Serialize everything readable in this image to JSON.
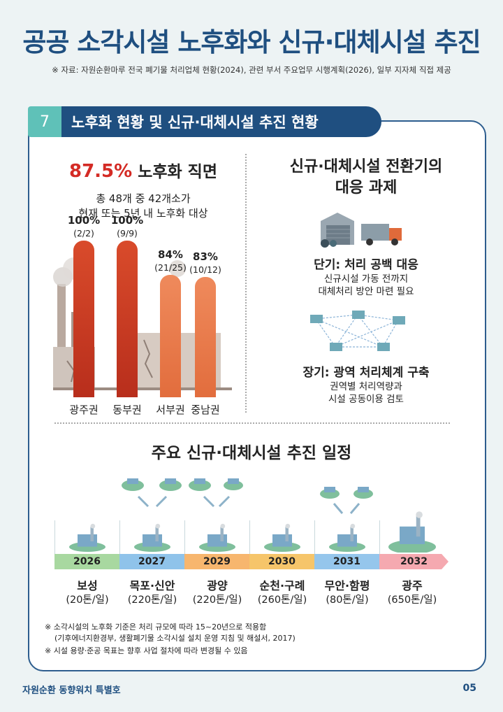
{
  "page": {
    "title": "공공 소각시설 노후화와 신규·대체시설 추진",
    "source": "※ 자료: 자원순환마루 전국 폐기물 처리업체 현황(2024), 관련 부서 주요업무 시행계획(2026), 일부 지자체 직접 제공",
    "footer_left": "자원순환 동향워치 특별호",
    "page_number": "05"
  },
  "section": {
    "number": "7",
    "title": "노후화 현황 및 신규·대체시설 추진 현황"
  },
  "left": {
    "headline_pct": "87.5%",
    "headline_text": " 노후화 직면",
    "sub1": "총 48개 중 42개소가",
    "sub2": "현재 또는 5년 내 노후화 대상"
  },
  "chart_data": {
    "type": "bar",
    "categories": [
      "광주권",
      "동부권",
      "서부권",
      "중남권"
    ],
    "values": [
      100,
      100,
      84,
      83
    ],
    "value_labels": [
      "100%",
      "100%",
      "84%",
      "83%"
    ],
    "counts": [
      "(2/2)",
      "(9/9)",
      "(21/25)",
      "(10/12)"
    ],
    "ylim": [
      0,
      100
    ],
    "colors": [
      "#c7361f",
      "#c7361f",
      "#e8784a",
      "#e8784a"
    ]
  },
  "right": {
    "title1": "신규·대체시설 전환기의",
    "title2": "대응 과제",
    "short_head": "단기: 처리 공백 대응",
    "short_l1": "신규시설 가동 전까지",
    "short_l2": "대체처리 방안 마련 필요",
    "long_head": "장기: 광역 처리체계 구축",
    "long_l1": "권역별 처리역량과",
    "long_l2": "시설 공동이용 검토"
  },
  "schedule": {
    "title": "주요 신규·대체시설 추진 일정",
    "items": [
      {
        "year": "2026",
        "location": "보성",
        "capacity": "(20톤/일)",
        "color": "#a8d8a0"
      },
      {
        "year": "2027",
        "location": "목포·신안",
        "capacity": "(220톤/일)",
        "color": "#8fc3ea"
      },
      {
        "year": "2029",
        "location": "광양",
        "capacity": "(220톤/일)",
        "color": "#f7b66e"
      },
      {
        "year": "2030",
        "location": "순천·구례",
        "capacity": "(260톤/일)",
        "color": "#f6c56a"
      },
      {
        "year": "2031",
        "location": "무안·함평",
        "capacity": "(80톤/일)",
        "color": "#95c6ec"
      },
      {
        "year": "2032",
        "location": "광주",
        "capacity": "(650톤/일)",
        "color": "#f5a9b0"
      }
    ]
  },
  "notes": {
    "n1": "※ 소각시설의 노후화 기준은 처리 규모에 따라 15~20년으로 적용함",
    "n2": "(기후에너지환경부, 생활폐기물 소각시설 설치 운영 지침 및 해설서, 2017)",
    "n3": "※ 시설 용량·준공 목표는 향후 사업 절차에 따라 변경될 수 있음"
  }
}
